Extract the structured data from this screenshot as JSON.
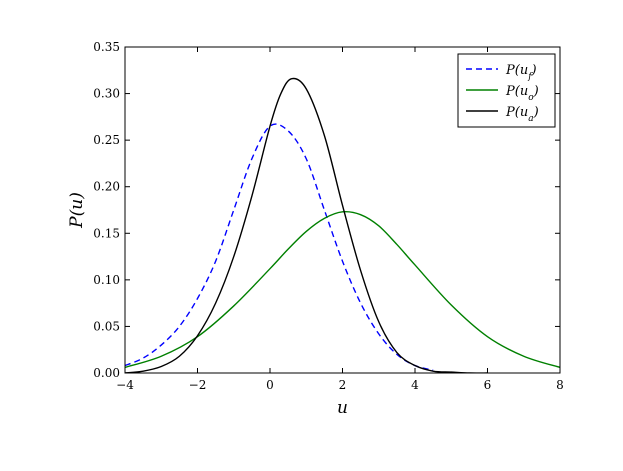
{
  "chart_data": {
    "type": "line",
    "title": "",
    "xlabel": "u",
    "ylabel": "P(u)",
    "xlim": [
      -4,
      8
    ],
    "ylim": [
      0,
      0.35
    ],
    "xticks": [
      -4,
      -2,
      0,
      2,
      4,
      6,
      8
    ],
    "xtick_labels": [
      "−4",
      "−2",
      "0",
      "2",
      "4",
      "6",
      "8"
    ],
    "yticks": [
      0.0,
      0.05,
      0.1,
      0.15,
      0.2,
      0.25,
      0.3,
      0.35
    ],
    "ytick_labels": [
      "0.00",
      "0.05",
      "0.10",
      "0.15",
      "0.20",
      "0.25",
      "0.30",
      "0.35"
    ],
    "grid": false,
    "legend_position": "top-right",
    "series": [
      {
        "name": "P(u_f)",
        "label_base": "P(u",
        "label_sub": "f",
        "label_close": ")",
        "style": "dashed",
        "color": "#0000ff",
        "x": [
          -4,
          -3.5,
          -3,
          -2.5,
          -2,
          -1.5,
          -1,
          -0.5,
          0,
          0.5,
          1,
          1.5,
          2,
          2.5,
          3,
          3.5,
          4,
          4.5
        ],
        "y": [
          0.008,
          0.016,
          0.03,
          0.05,
          0.08,
          0.12,
          0.175,
          0.23,
          0.265,
          0.26,
          0.23,
          0.175,
          0.12,
          0.075,
          0.042,
          0.02,
          0.008,
          0.003
        ]
      },
      {
        "name": "P(u_o)",
        "label_base": "P(u",
        "label_sub": "o",
        "label_close": ")",
        "style": "solid",
        "color": "#008000",
        "x": [
          -4,
          -3,
          -2,
          -1,
          0,
          0.5,
          1,
          1.5,
          2,
          2.5,
          3,
          3.5,
          4,
          5,
          6,
          7,
          8
        ],
        "y": [
          0.006,
          0.018,
          0.039,
          0.072,
          0.112,
          0.133,
          0.152,
          0.166,
          0.173,
          0.17,
          0.158,
          0.138,
          0.116,
          0.073,
          0.039,
          0.018,
          0.006
        ]
      },
      {
        "name": "P(u_a)",
        "label_base": "P(u",
        "label_sub": "a",
        "label_close": ")",
        "style": "solid",
        "color": "#000000",
        "x": [
          -4,
          -3.5,
          -3,
          -2.5,
          -2,
          -1.5,
          -1,
          -0.5,
          0,
          0.3,
          0.6,
          1,
          1.5,
          2,
          2.5,
          3,
          3.5,
          4,
          4.5,
          5,
          5.5,
          6
        ],
        "y": [
          0.0,
          0.002,
          0.007,
          0.018,
          0.04,
          0.075,
          0.125,
          0.19,
          0.265,
          0.3,
          0.316,
          0.305,
          0.255,
          0.18,
          0.11,
          0.055,
          0.022,
          0.008,
          0.002,
          0.001,
          0.0,
          0.0
        ]
      }
    ]
  }
}
